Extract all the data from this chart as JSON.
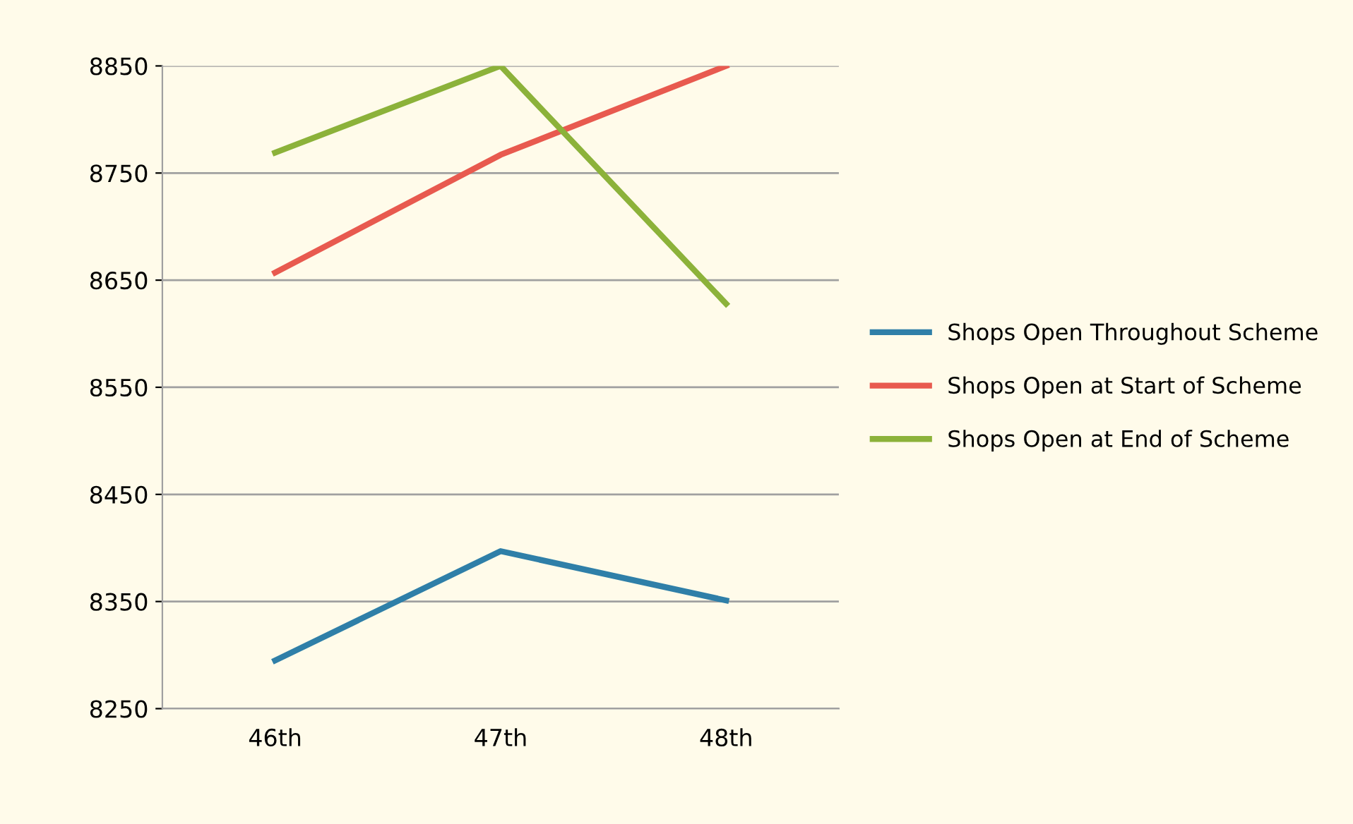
{
  "chart_data": {
    "type": "line",
    "categories": [
      "46th",
      "47th",
      "48th"
    ],
    "series": [
      {
        "name": "Shops Open Throughout Scheme",
        "color": "#2f7fa8",
        "values": [
          8295,
          8397,
          8351
        ]
      },
      {
        "name": "Shops Open at Start of Scheme",
        "color": "#e85a4f",
        "values": [
          8657,
          8767,
          8850
        ]
      },
      {
        "name": "Shops Open at End of Scheme",
        "color": "#8cb23a",
        "values": [
          8769,
          8850,
          8628
        ]
      }
    ],
    "ylim": [
      8250,
      8850
    ],
    "yticks": [
      8250,
      8350,
      8450,
      8550,
      8650,
      8750,
      8850
    ],
    "grid": "y",
    "legend": "right",
    "marker": "none",
    "line_style": "solid"
  }
}
